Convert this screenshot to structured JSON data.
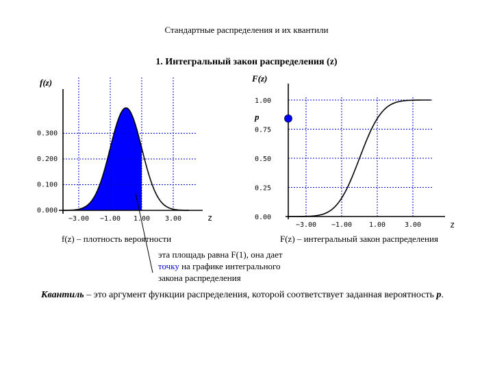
{
  "slide_title": "Стандартные распределения и их квантили",
  "section_title": "1. Интегральный закон распределения (z)",
  "chart_data": [
    {
      "type": "area",
      "ylabel": "f(z)",
      "xlabel": "z",
      "xlim": [
        -4.0,
        4.0
      ],
      "ylim": [
        0,
        0.4
      ],
      "x_ticks": [
        "−3.00",
        "−1.00",
        "1.00",
        "3.00"
      ],
      "y_ticks": [
        "0.000",
        "0.100",
        "0.200",
        "0.300"
      ],
      "grid": true,
      "shaded_to": 1.0,
      "x": [
        -4.0,
        -3.5,
        -3.0,
        -2.5,
        -2.0,
        -1.5,
        -1.0,
        -0.5,
        0.0,
        0.5,
        1.0,
        1.5,
        2.0,
        2.5,
        3.0,
        3.5,
        4.0
      ],
      "values": [
        0.0001,
        0.0009,
        0.0044,
        0.0175,
        0.054,
        0.1295,
        0.242,
        0.3521,
        0.3989,
        0.3521,
        0.242,
        0.1295,
        0.054,
        0.0175,
        0.0044,
        0.0009,
        0.0001
      ],
      "caption": "f(z) – плотность вероятности"
    },
    {
      "type": "line",
      "ylabel": "F(z)",
      "xlabel": "z",
      "xlim": [
        -4.0,
        4.0
      ],
      "ylim": [
        0,
        1.0
      ],
      "x_ticks": [
        "−3.00",
        "−1.00",
        "1.00",
        "3.00"
      ],
      "y_ticks": [
        "0.00",
        "0.25",
        "0.50",
        "0.75",
        "1.00"
      ],
      "grid": true,
      "point_label": "p",
      "point_value": 0.8413,
      "x": [
        -4.0,
        -3.5,
        -3.0,
        -2.5,
        -2.0,
        -1.5,
        -1.0,
        -0.5,
        0.0,
        0.5,
        1.0,
        1.5,
        2.0,
        2.5,
        3.0,
        3.5,
        4.0
      ],
      "values": [
        0.0,
        0.0002,
        0.0013,
        0.0062,
        0.0228,
        0.0668,
        0.1587,
        0.3085,
        0.5,
        0.6915,
        0.8413,
        0.9332,
        0.9772,
        0.9938,
        0.9987,
        0.9998,
        1.0
      ],
      "caption": "F(z) – интегральный закон распределения"
    }
  ],
  "annotation": {
    "line1": "эта площадь равна F(1), она дает",
    "line2_highlight": "точку",
    "line2_rest": " на графике интегрального",
    "line3": "закона распределения"
  },
  "quantile": {
    "term": "Квантиль",
    "text": " – это аргумент функции распределения, которой соответствует заданная вероятность ",
    "p": "p",
    "end": "."
  },
  "colors": {
    "fill": "#0000ff",
    "grid": "#0000cc",
    "curve": "#000000",
    "point": "#0000ff"
  }
}
